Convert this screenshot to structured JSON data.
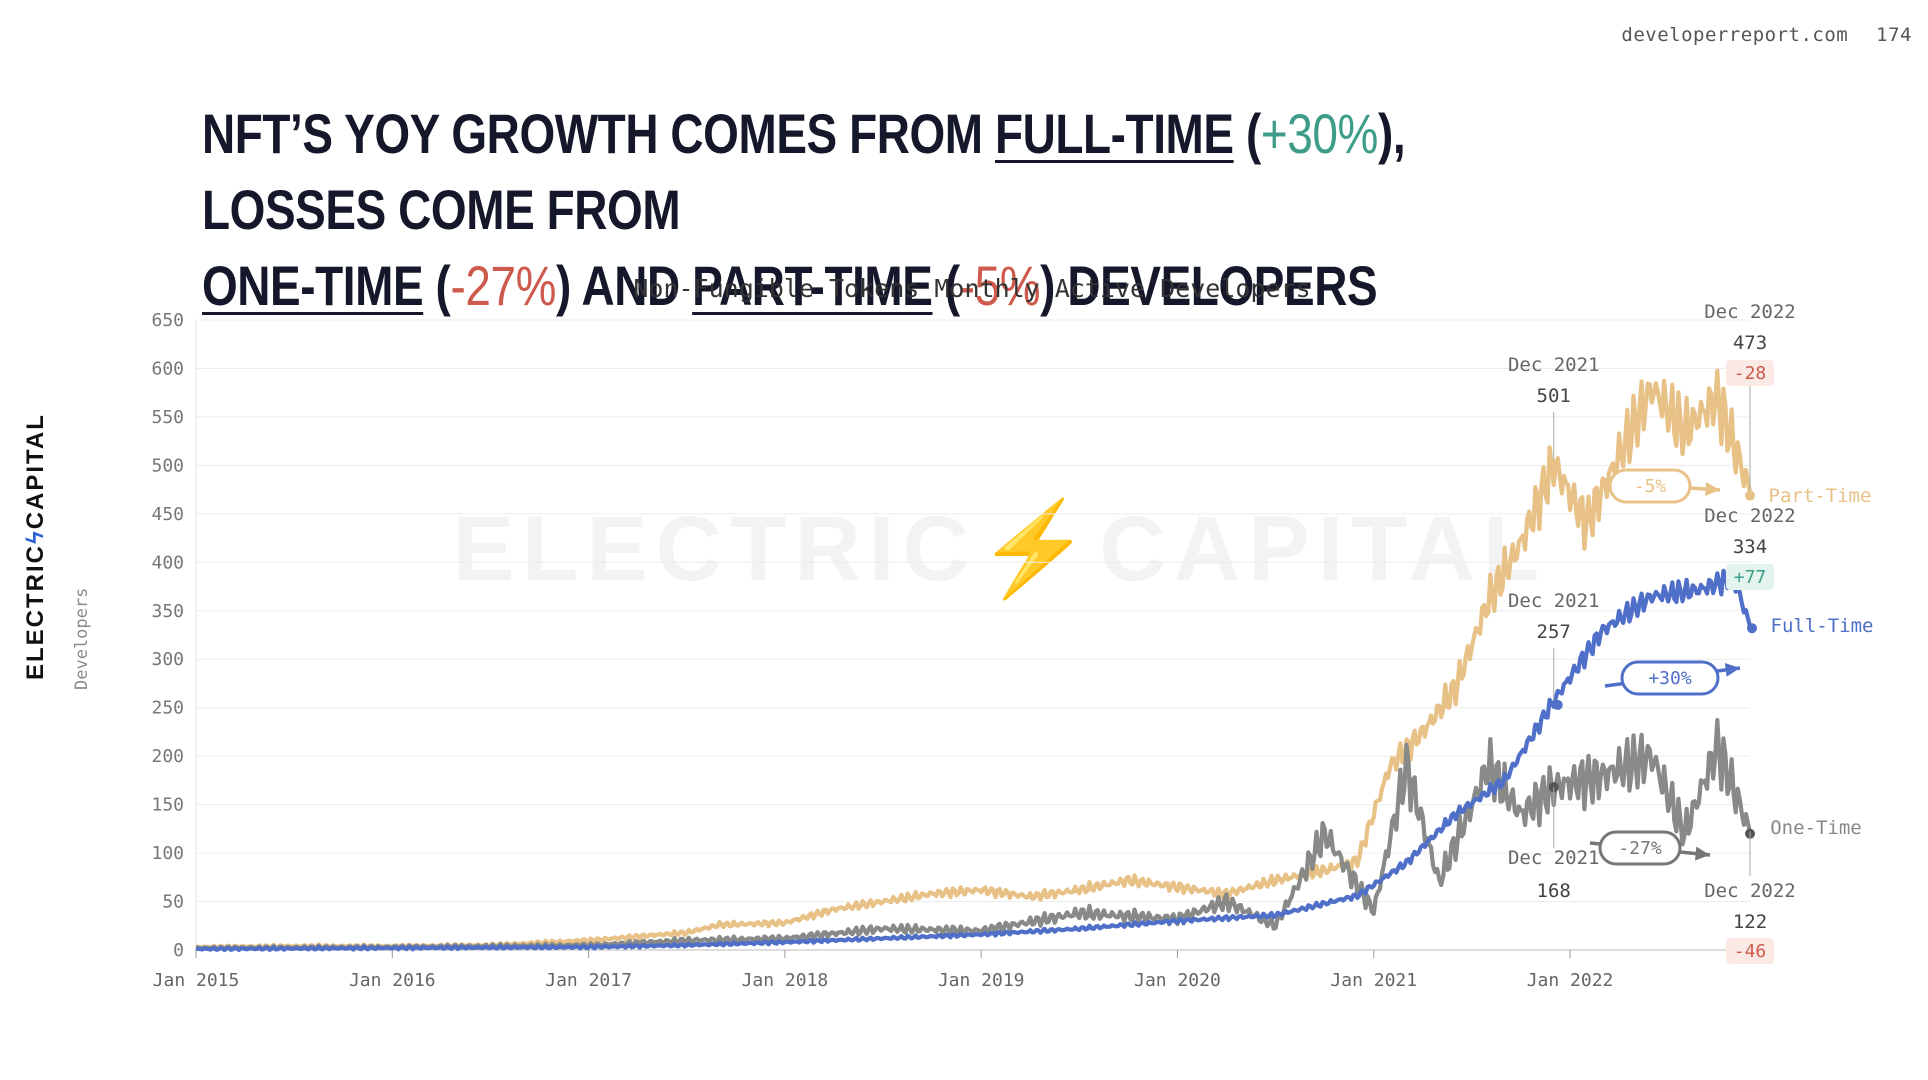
{
  "header": {
    "site": "developerreport.com",
    "page_number": "174"
  },
  "headline": {
    "line1_a": "NFT’S YOY GROWTH COMES FROM ",
    "line1_b": "FULL-TIME",
    "line1_c": " (",
    "line1_d": "+30%",
    "line1_e": "), LOSSES COME FROM",
    "line2_a": "ONE-TIME",
    "line2_b": " (",
    "line2_c": "-27%",
    "line2_d": ") AND ",
    "line2_e": "PART-TIME",
    "line2_f": " (",
    "line2_g": "-5%",
    "line2_h": ") DEVELOPERS"
  },
  "brand": {
    "left": "ELECTRIC",
    "bolt": "ϟ",
    "right": "CAPITAL"
  },
  "watermark": "ELECTRIC⚡CAPITAL",
  "colors": {
    "part_time": "#e8c186",
    "full_time": "#4f6fc8",
    "one_time": "#888a87",
    "positive": "#3d9d88",
    "negative": "#cd5a4c",
    "grid": "#ececec"
  },
  "chart_data": {
    "type": "line",
    "title": "Non-Fungible Tokens Monthly Active Developers",
    "xlabel": "",
    "ylabel": "Developers",
    "ylim": [
      0,
      650
    ],
    "yticks": [
      0,
      50,
      100,
      150,
      200,
      250,
      300,
      350,
      400,
      450,
      500,
      550,
      600,
      650
    ],
    "xlim": [
      "2015-01",
      "2022-12"
    ],
    "xticks": [
      "Jan 2015",
      "Jan 2016",
      "Jan 2017",
      "Jan 2018",
      "Jan 2019",
      "Jan 2020",
      "Jan 2021",
      "Jan 2022"
    ],
    "grid": true,
    "series": [
      {
        "name": "Part-Time",
        "color": "#e8c186",
        "points": [
          [
            "2015-01",
            3
          ],
          [
            "2015-07",
            4
          ],
          [
            "2016-01",
            4
          ],
          [
            "2016-07",
            5
          ],
          [
            "2017-01",
            10
          ],
          [
            "2017-07",
            18
          ],
          [
            "2017-09",
            26
          ],
          [
            "2018-01",
            28
          ],
          [
            "2018-04",
            42
          ],
          [
            "2018-07",
            50
          ],
          [
            "2018-10",
            58
          ],
          [
            "2019-01",
            62
          ],
          [
            "2019-04",
            55
          ],
          [
            "2019-07",
            62
          ],
          [
            "2019-10",
            72
          ],
          [
            "2020-01",
            65
          ],
          [
            "2020-04",
            58
          ],
          [
            "2020-07",
            72
          ],
          [
            "2020-10",
            82
          ],
          [
            "2020-12",
            92
          ],
          [
            "2021-02",
            190
          ],
          [
            "2021-04",
            225
          ],
          [
            "2021-06",
            270
          ],
          [
            "2021-08",
            360
          ],
          [
            "2021-10",
            420
          ],
          [
            "2021-12",
            501
          ],
          [
            "2022-02",
            440
          ],
          [
            "2022-04",
            510
          ],
          [
            "2022-06",
            580
          ],
          [
            "2022-08",
            535
          ],
          [
            "2022-10",
            570
          ],
          [
            "2022-12",
            473
          ]
        ]
      },
      {
        "name": "Full-Time",
        "color": "#4f6fc8",
        "points": [
          [
            "2015-01",
            1
          ],
          [
            "2016-01",
            2
          ],
          [
            "2017-01",
            3
          ],
          [
            "2017-07",
            5
          ],
          [
            "2018-01",
            8
          ],
          [
            "2018-07",
            12
          ],
          [
            "2019-01",
            16
          ],
          [
            "2019-07",
            22
          ],
          [
            "2020-01",
            30
          ],
          [
            "2020-07",
            36
          ],
          [
            "2020-12",
            56
          ],
          [
            "2021-03",
            90
          ],
          [
            "2021-06",
            140
          ],
          [
            "2021-09",
            175
          ],
          [
            "2021-12",
            257
          ],
          [
            "2022-03",
            330
          ],
          [
            "2022-06",
            365
          ],
          [
            "2022-09",
            372
          ],
          [
            "2022-11",
            385
          ],
          [
            "2022-12",
            334
          ]
        ]
      },
      {
        "name": "One-Time",
        "color": "#888a87",
        "points": [
          [
            "2015-01",
            2
          ],
          [
            "2016-01",
            3
          ],
          [
            "2017-01",
            5
          ],
          [
            "2017-07",
            10
          ],
          [
            "2018-01",
            12
          ],
          [
            "2018-07",
            22
          ],
          [
            "2019-01",
            20
          ],
          [
            "2019-07",
            38
          ],
          [
            "2020-01",
            32
          ],
          [
            "2020-04",
            50
          ],
          [
            "2020-07",
            25
          ],
          [
            "2020-10",
            120
          ],
          [
            "2021-01",
            40
          ],
          [
            "2021-03",
            190
          ],
          [
            "2021-05",
            70
          ],
          [
            "2021-08",
            190
          ],
          [
            "2021-10",
            140
          ],
          [
            "2021-12",
            168
          ],
          [
            "2022-03",
            180
          ],
          [
            "2022-06",
            200
          ],
          [
            "2022-08",
            120
          ],
          [
            "2022-10",
            210
          ],
          [
            "2022-12",
            122
          ]
        ]
      }
    ],
    "annotations": {
      "part_time": {
        "start_label": "Dec 2021",
        "start_value": "501",
        "end_label": "Dec 2022",
        "end_value": "473",
        "delta": "-28",
        "pct": "-5%",
        "series_label": "Part-Time"
      },
      "full_time": {
        "start_label": "Dec 2021",
        "start_value": "257",
        "end_label": "Dec 2022",
        "end_value": "334",
        "delta": "+77",
        "pct": "+30%",
        "series_label": "Full-Time"
      },
      "one_time": {
        "start_label": "Dec 2021",
        "start_value": "168",
        "end_label": "Dec 2022",
        "end_value": "122",
        "delta": "-46",
        "pct": "-27%",
        "series_label": "One-Time"
      }
    }
  }
}
